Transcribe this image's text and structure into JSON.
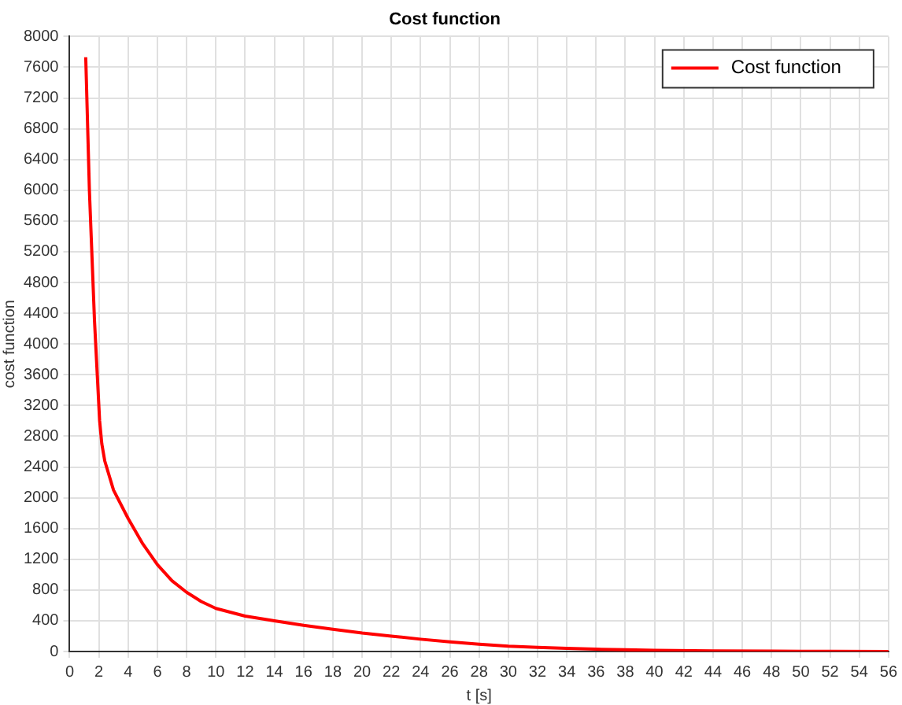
{
  "chart_data": {
    "type": "line",
    "title": "Cost function",
    "xlabel": "t [s]",
    "ylabel": "cost function",
    "xlim": [
      0,
      56
    ],
    "xticks": [
      0,
      2,
      4,
      6,
      8,
      10,
      12,
      14,
      16,
      18,
      20,
      22,
      24,
      26,
      28,
      30,
      32,
      34,
      36,
      38,
      40,
      42,
      44,
      46,
      48,
      50,
      52,
      54,
      56
    ],
    "ylim": [
      0,
      8000
    ],
    "yticks": [
      0,
      400,
      800,
      1200,
      1600,
      2000,
      2400,
      2800,
      3200,
      3600,
      4000,
      4400,
      4800,
      5200,
      5600,
      6000,
      6400,
      6800,
      7200,
      7600,
      8000
    ],
    "grid": true,
    "legend": "top right",
    "marker": "none",
    "line_style": "solid",
    "series": [
      {
        "name": "Cost function",
        "color": "#ff0000",
        "x": [
          1.1,
          1.35,
          1.7,
          2.05,
          2.2,
          2.4,
          3,
          4,
          5,
          6,
          7,
          8,
          9,
          10,
          12,
          14,
          16,
          18,
          20,
          22,
          24,
          26,
          28,
          30,
          32,
          34,
          36,
          38,
          40,
          44,
          48,
          52,
          56
        ],
        "values": [
          7730,
          6000,
          4300,
          3000,
          2700,
          2480,
          2100,
          1730,
          1400,
          1130,
          920,
          770,
          650,
          560,
          460,
          400,
          340,
          290,
          240,
          200,
          160,
          125,
          95,
          70,
          55,
          40,
          30,
          22,
          15,
          8,
          4,
          2,
          0
        ]
      }
    ]
  }
}
